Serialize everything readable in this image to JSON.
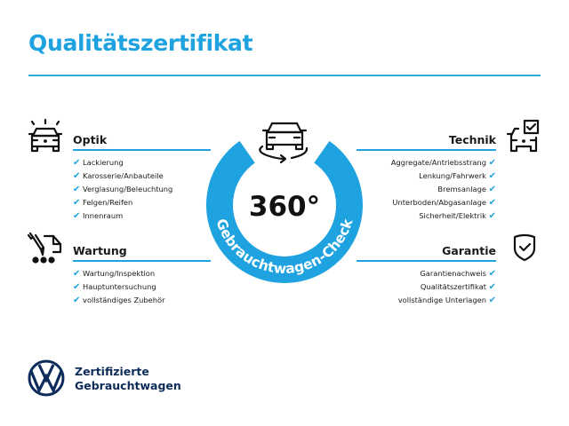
{
  "title": "Qualitätszertifikat",
  "accent_color": "#1fa3e0",
  "center": {
    "value": "360°",
    "ring_text": "Gebrauchtwagen-Check",
    "icon": "car-rotate-icon"
  },
  "sections": {
    "optik": {
      "heading": "Optik",
      "icon": "car-lights-icon",
      "items": [
        "Lackierung",
        "Karosserie/Anbauteile",
        "Verglasung/Beleuchtung",
        "Felgen/Reifen",
        "Innenraum"
      ]
    },
    "wartung": {
      "heading": "Wartung",
      "icon": "car-tools-icon",
      "items": [
        "Wartung/Inspektion",
        "Hauptuntersuchung",
        "vollständiges Zubehör"
      ]
    },
    "technik": {
      "heading": "Technik",
      "icon": "car-checkbox-icon",
      "items": [
        "Aggregate/Antriebsstrang",
        "Lenkung/Fahrwerk",
        "Bremsanlage",
        "Unterboden/Abgasanlage",
        "Sicherheit/Elektrik"
      ]
    },
    "garantie": {
      "heading": "Garantie",
      "icon": "shield-check-icon",
      "items": [
        "Garantienachweis",
        "Qualitätszertifikat",
        "vollständige Unterlagen"
      ]
    }
  },
  "check_glyph": "✔",
  "footer": {
    "line1": "Zertifizierte",
    "line2": "Gebrauchtwagen",
    "logo": "VW"
  }
}
